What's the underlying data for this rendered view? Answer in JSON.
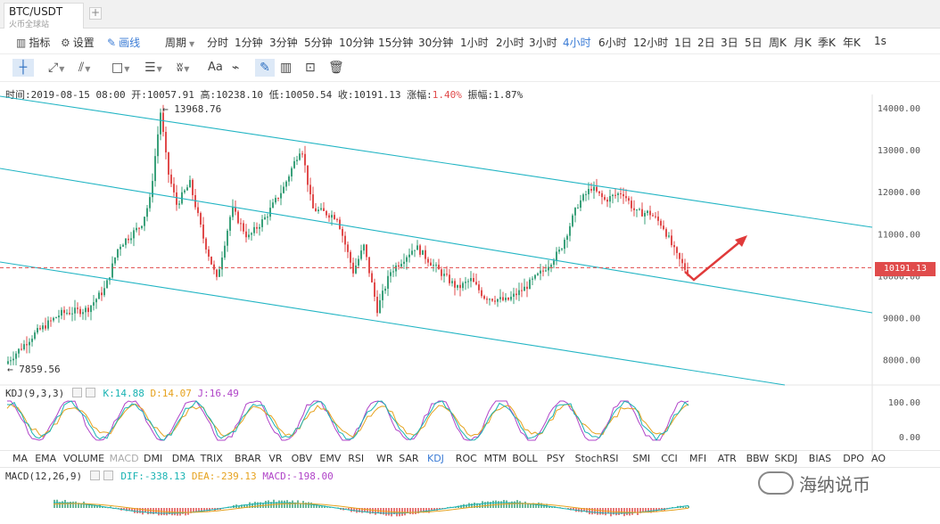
{
  "tab": {
    "title": "BTC/USDT",
    "subtitle": "火币全球站",
    "add": "+"
  },
  "toolbar1": {
    "indicator_label": "指标",
    "settings_label": "设置",
    "draw_label": "画线",
    "period_label": "周期",
    "periods": [
      "分时",
      "1分钟",
      "3分钟",
      "5分钟",
      "10分钟",
      "15分钟",
      "30分钟",
      "1小时",
      "2小时",
      "3小时",
      "4小时",
      "6小时",
      "12小时",
      "1日",
      "2日",
      "3日",
      "5日",
      "周K",
      "月K",
      "季K",
      "年K",
      "1s"
    ],
    "active_period": "4小时"
  },
  "toolbar2": {
    "text_tool": "Aa"
  },
  "info": {
    "time_label": "时间:",
    "time": "2019-08-15 08:00",
    "open_label": "开:",
    "open": "10057.91",
    "high_label": "高:",
    "high": "10238.10",
    "low_label": "低:",
    "low": "10050.54",
    "close_label": "收:",
    "close": "10191.13",
    "change_label": "涨幅:",
    "change": "1.40%",
    "amp_label": "振幅:",
    "amp": "1.87%"
  },
  "chart": {
    "price_axis": [
      "14000.00",
      "13000.00",
      "12000.00",
      "11000.00",
      "10000.00",
      "9000.00",
      "8000.00"
    ],
    "current_price": "10191.13",
    "high_marker": "13968.76",
    "low_marker": "7859.56",
    "kdj_axis": [
      "100.00",
      "0.00"
    ],
    "colors": {
      "up": "#3aa07a",
      "down": "#e04b4b",
      "channel": "#23b5c4",
      "k": "#19b3b3",
      "d": "#e6a21e",
      "j": "#b044c8"
    }
  },
  "kdj": {
    "name": "KDJ(9,3,3)",
    "k": "K:14.88",
    "d": "D:14.07",
    "j": "J:16.49"
  },
  "indicators": [
    "MA",
    "EMA",
    "VOLUME",
    "MACD",
    "DMI",
    "DMA",
    "TRIX",
    "BRAR",
    "VR",
    "OBV",
    "EMV",
    "RSI",
    "WR",
    "SAR",
    "KDJ",
    "ROC",
    "MTM",
    "BOLL",
    "PSY",
    "StochRSI",
    "SMI",
    "CCI",
    "MFI",
    "ATR",
    "BBW",
    "SKDJ",
    "BIAS",
    "DPO",
    "AO"
  ],
  "active_indicator": "KDJ",
  "dim_indicator": "MACD",
  "macd": {
    "name": "MACD(12,26,9)",
    "dif": "DIF:-338.13",
    "dea": "DEA:-239.13",
    "macd": "MACD:-198.00"
  },
  "watermark": "海纳说币"
}
